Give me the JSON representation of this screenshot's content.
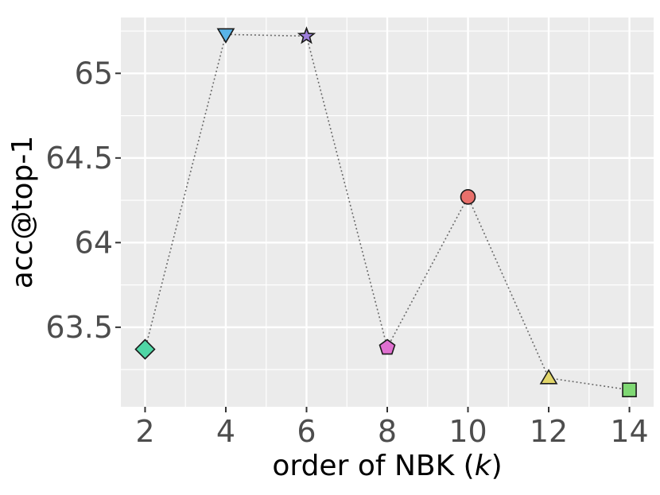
{
  "chart_data": {
    "type": "line",
    "title": "",
    "xlabel_prefix": "order of NBK (",
    "xlabel_var": "k",
    "xlabel_suffix": ")",
    "ylabel": "acc@top-1",
    "x": [
      2,
      4,
      6,
      8,
      10,
      12,
      14
    ],
    "y": [
      63.37,
      65.23,
      65.22,
      63.38,
      64.27,
      63.2,
      63.13
    ],
    "markers": [
      "diamond",
      "triangle-down",
      "star",
      "pentagon",
      "circle",
      "triangle-up",
      "square"
    ],
    "colors": [
      "#4fd6a5",
      "#5ab4e8",
      "#9e7fdc",
      "#e070d0",
      "#e8706b",
      "#e2d66a",
      "#7fd873"
    ],
    "line_style": "dotted",
    "line_color": "#6b6b6b",
    "xlim": [
      1.4,
      14.6
    ],
    "ylim": [
      63.03,
      65.33
    ],
    "x_ticks": [
      "2",
      "4",
      "6",
      "8",
      "10",
      "12",
      "14"
    ],
    "y_ticks": [
      "63.5",
      "64",
      "64.5",
      "65"
    ],
    "grid": true,
    "panel_color": "#ebebeb"
  }
}
